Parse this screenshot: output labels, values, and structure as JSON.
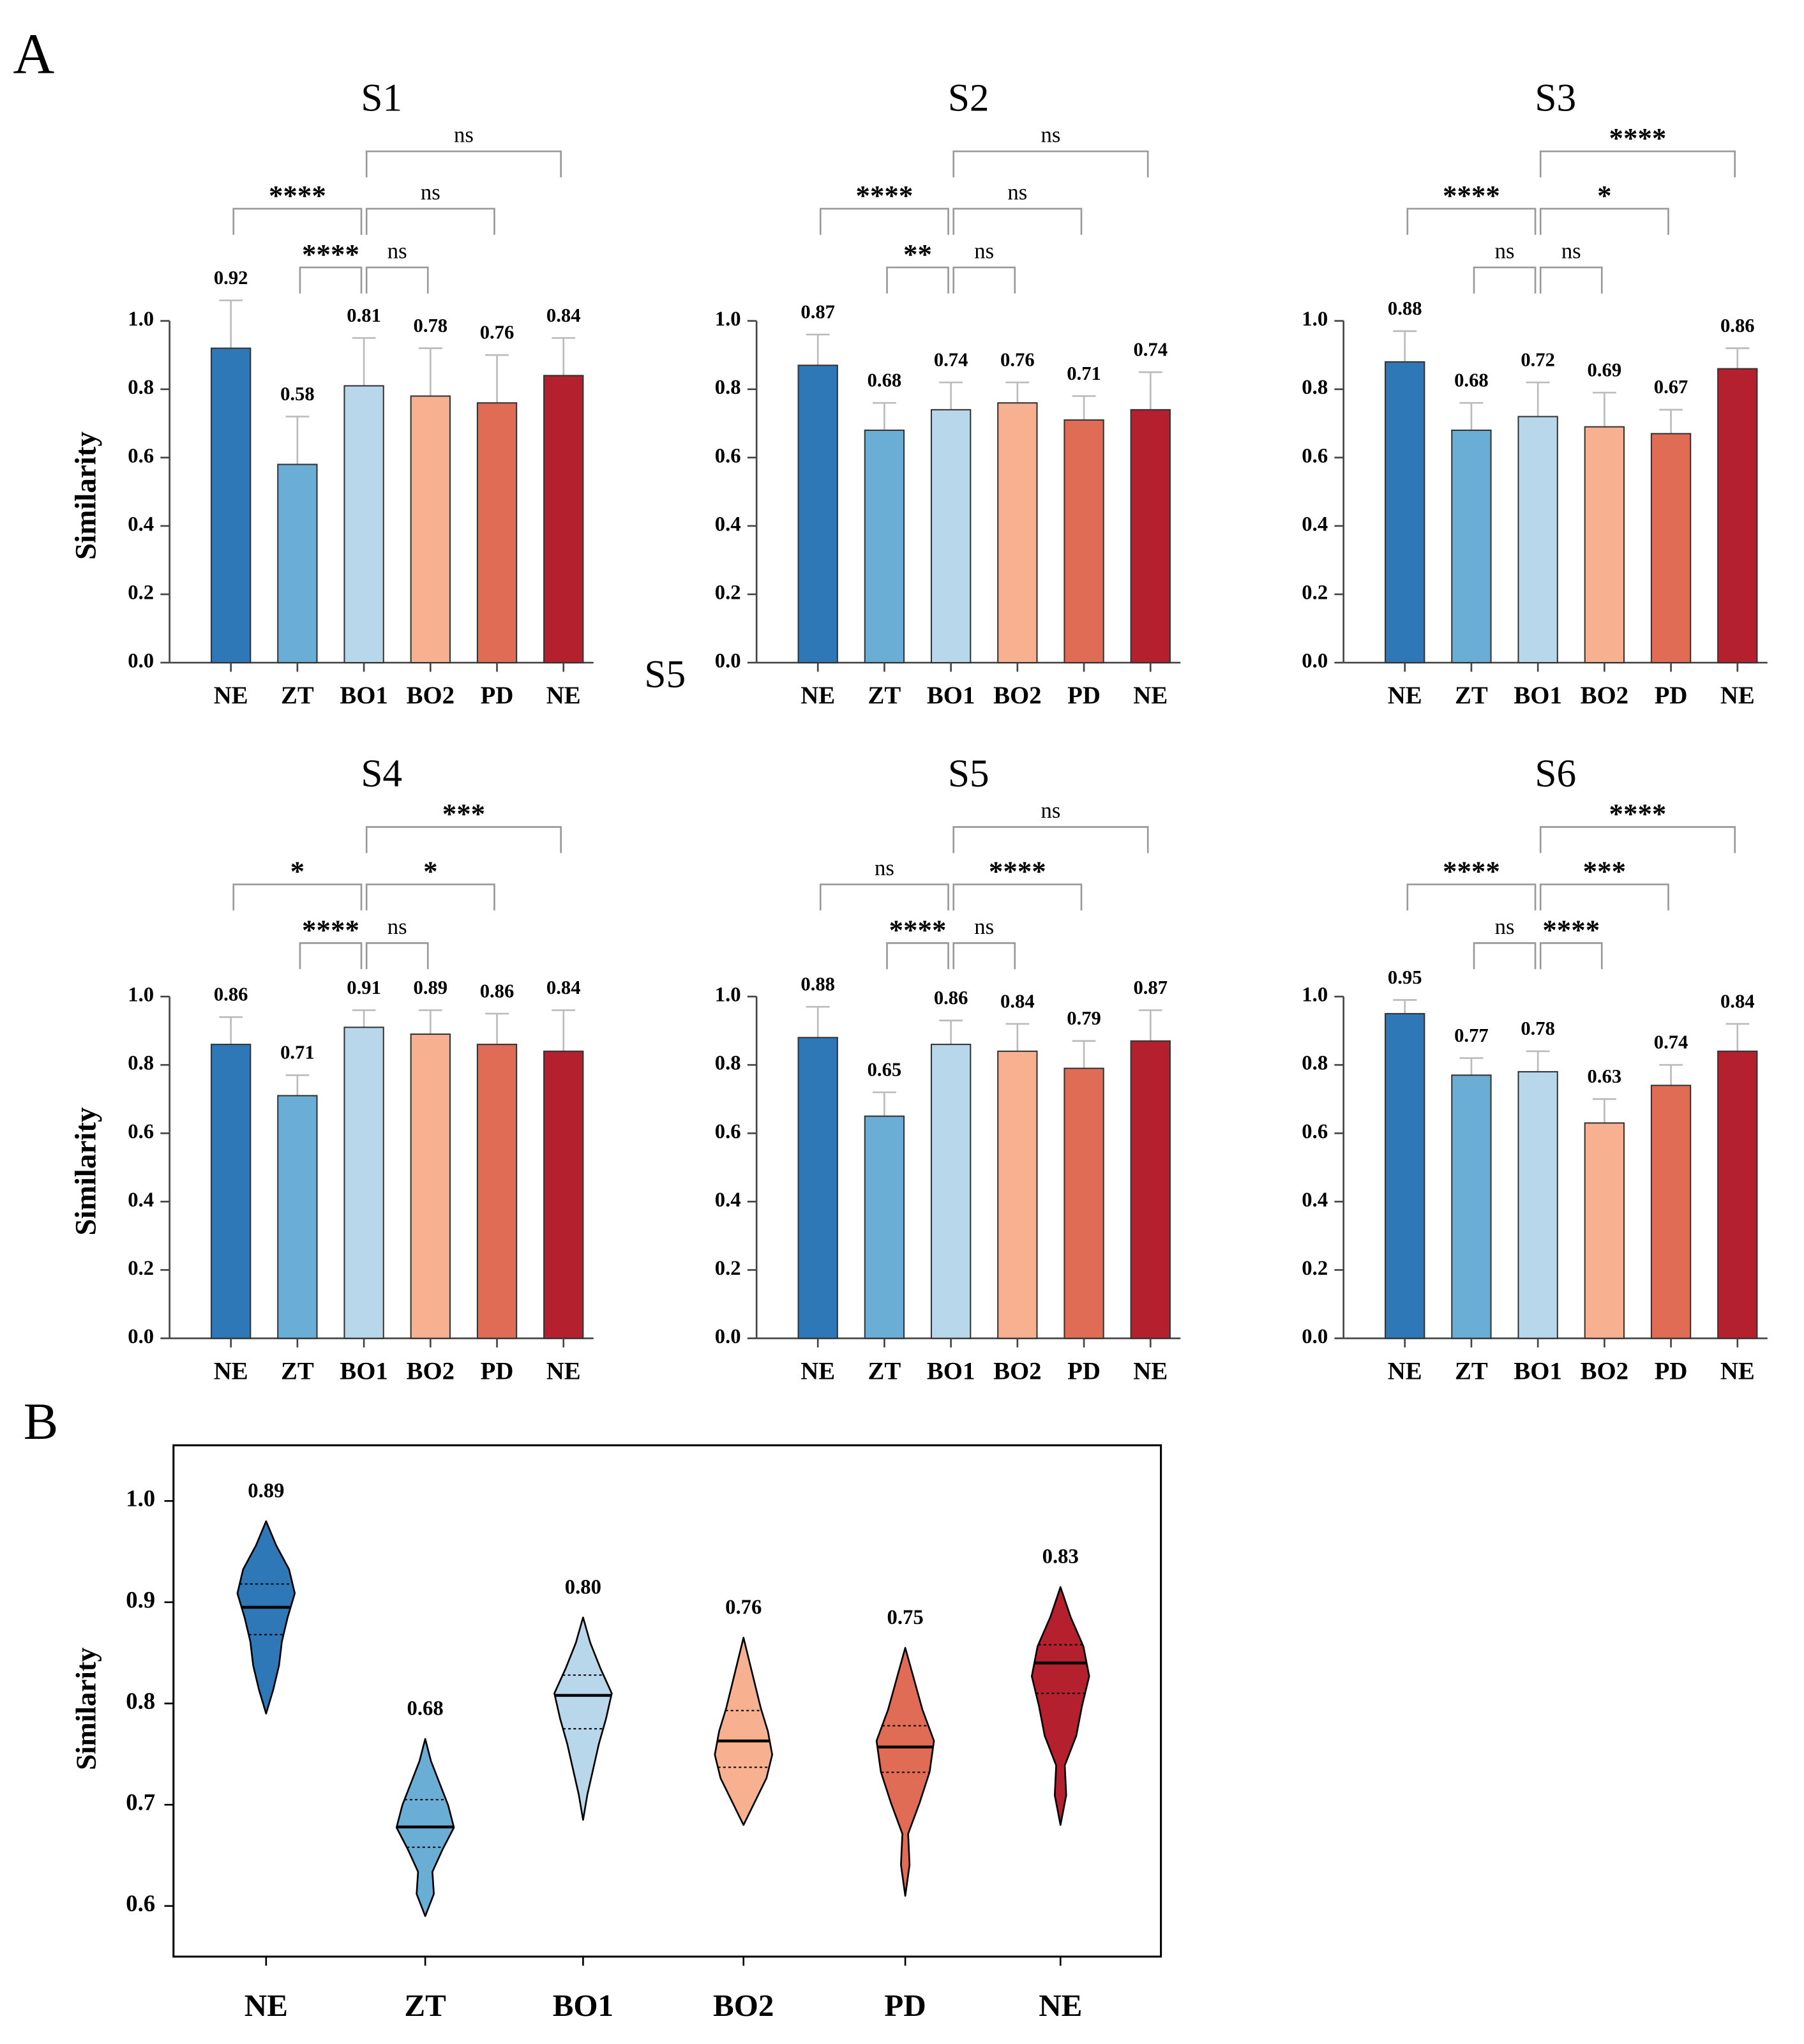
{
  "labels": {
    "a": "A",
    "b": "B",
    "stray": "S5"
  },
  "chart_data": [
    {
      "type": "bar",
      "title": "S1",
      "y_label": "Similarity",
      "categories": [
        "NE",
        "ZT",
        "BO1",
        "BO2",
        "PD",
        "NE"
      ],
      "colors": [
        "#2e78b7",
        "#6aaed6",
        "#b9d7ea",
        "#f7b090",
        "#e06c55",
        "#b5202e"
      ],
      "values": [
        0.92,
        0.58,
        0.81,
        0.78,
        0.76,
        0.84
      ],
      "errors": [
        0.14,
        0.14,
        0.14,
        0.14,
        0.14,
        0.11
      ],
      "ylim": [
        0,
        1
      ],
      "yticks": [
        {
          "value": 0,
          "label": "0.0"
        },
        0.2,
        0.4,
        0.6,
        0.8,
        {
          "value": 1,
          "label": "1.0"
        }
      ],
      "comparisons": [
        {
          "from": 0,
          "to": 2,
          "label": "****"
        },
        {
          "from": 1,
          "to": 2,
          "label": "****"
        },
        {
          "from": 2,
          "to": 3,
          "label": "ns"
        },
        {
          "from": 2,
          "to": 4,
          "label": "ns"
        },
        {
          "from": 2,
          "to": 5,
          "label": "ns"
        }
      ]
    },
    {
      "type": "bar",
      "title": "S2",
      "categories": [
        "NE",
        "ZT",
        "BO1",
        "BO2",
        "PD",
        "NE"
      ],
      "colors": [
        "#2e78b7",
        "#6aaed6",
        "#b9d7ea",
        "#f7b090",
        "#e06c55",
        "#b5202e"
      ],
      "values": [
        0.87,
        0.68,
        0.74,
        0.76,
        0.71,
        0.74
      ],
      "errors": [
        0.09,
        0.08,
        0.08,
        0.06,
        0.07,
        0.11
      ],
      "ylim": [
        0,
        1
      ],
      "yticks": [
        {
          "value": 0,
          "label": "0.0"
        },
        0.2,
        0.4,
        0.6,
        0.8,
        {
          "value": 1,
          "label": "1.0"
        }
      ],
      "comparisons": [
        {
          "from": 0,
          "to": 2,
          "label": "****"
        },
        {
          "from": 1,
          "to": 2,
          "label": "**"
        },
        {
          "from": 2,
          "to": 3,
          "label": "ns"
        },
        {
          "from": 2,
          "to": 4,
          "label": "ns"
        },
        {
          "from": 2,
          "to": 5,
          "label": "ns"
        }
      ]
    },
    {
      "type": "bar",
      "title": "S3",
      "categories": [
        "NE",
        "ZT",
        "BO1",
        "BO2",
        "PD",
        "NE"
      ],
      "colors": [
        "#2e78b7",
        "#6aaed6",
        "#b9d7ea",
        "#f7b090",
        "#e06c55",
        "#b5202e"
      ],
      "values": [
        0.88,
        0.68,
        0.72,
        0.69,
        0.67,
        0.86
      ],
      "errors": [
        0.09,
        0.08,
        0.1,
        0.1,
        0.07,
        0.06
      ],
      "ylim": [
        0,
        1
      ],
      "yticks": [
        {
          "value": 0,
          "label": "0.0"
        },
        0.2,
        0.4,
        0.6,
        0.8,
        {
          "value": 1,
          "label": "1.0"
        }
      ],
      "comparisons": [
        {
          "from": 0,
          "to": 2,
          "label": "****"
        },
        {
          "from": 1,
          "to": 2,
          "label": "ns"
        },
        {
          "from": 2,
          "to": 3,
          "label": "ns"
        },
        {
          "from": 2,
          "to": 4,
          "label": "*"
        },
        {
          "from": 2,
          "to": 5,
          "label": "****"
        }
      ]
    },
    {
      "type": "bar",
      "title": "S4",
      "y_label": "Similarity",
      "categories": [
        "NE",
        "ZT",
        "BO1",
        "BO2",
        "PD",
        "NE"
      ],
      "colors": [
        "#2e78b7",
        "#6aaed6",
        "#b9d7ea",
        "#f7b090",
        "#e06c55",
        "#b5202e"
      ],
      "values": [
        0.86,
        0.71,
        0.91,
        0.89,
        0.86,
        0.84
      ],
      "errors": [
        0.08,
        0.06,
        0.05,
        0.07,
        0.09,
        0.12
      ],
      "ylim": [
        0,
        1
      ],
      "yticks": [
        {
          "value": 0,
          "label": "0.0"
        },
        0.2,
        0.4,
        0.6,
        0.8,
        {
          "value": 1,
          "label": "1.0"
        }
      ],
      "comparisons": [
        {
          "from": 0,
          "to": 2,
          "label": "*"
        },
        {
          "from": 1,
          "to": 2,
          "label": "****"
        },
        {
          "from": 2,
          "to": 3,
          "label": "ns"
        },
        {
          "from": 2,
          "to": 4,
          "label": "*"
        },
        {
          "from": 2,
          "to": 5,
          "label": "***"
        }
      ]
    },
    {
      "type": "bar",
      "title": "S5",
      "categories": [
        "NE",
        "ZT",
        "BO1",
        "BO2",
        "PD",
        "NE"
      ],
      "colors": [
        "#2e78b7",
        "#6aaed6",
        "#b9d7ea",
        "#f7b090",
        "#e06c55",
        "#b5202e"
      ],
      "values": [
        0.88,
        0.65,
        0.86,
        0.84,
        0.79,
        0.87
      ],
      "errors": [
        0.09,
        0.07,
        0.07,
        0.08,
        0.08,
        0.09
      ],
      "ylim": [
        0,
        1
      ],
      "yticks": [
        {
          "value": 0,
          "label": "0.0"
        },
        0.2,
        0.4,
        0.6,
        0.8,
        {
          "value": 1,
          "label": "1.0"
        }
      ],
      "comparisons": [
        {
          "from": 0,
          "to": 2,
          "label": "ns"
        },
        {
          "from": 1,
          "to": 2,
          "label": "****"
        },
        {
          "from": 2,
          "to": 3,
          "label": "ns"
        },
        {
          "from": 2,
          "to": 4,
          "label": "****"
        },
        {
          "from": 2,
          "to": 5,
          "label": "ns"
        }
      ]
    },
    {
      "type": "bar",
      "title": "S6",
      "categories": [
        "NE",
        "ZT",
        "BO1",
        "BO2",
        "PD",
        "NE"
      ],
      "colors": [
        "#2e78b7",
        "#6aaed6",
        "#b9d7ea",
        "#f7b090",
        "#e06c55",
        "#b5202e"
      ],
      "values": [
        0.95,
        0.77,
        0.78,
        0.63,
        0.74,
        0.84
      ],
      "errors": [
        0.04,
        0.05,
        0.06,
        0.07,
        0.06,
        0.08
      ],
      "ylim": [
        0,
        1
      ],
      "yticks": [
        {
          "value": 0,
          "label": "0.0"
        },
        0.2,
        0.4,
        0.6,
        0.8,
        {
          "value": 1,
          "label": "1.0"
        }
      ],
      "comparisons": [
        {
          "from": 0,
          "to": 2,
          "label": "****"
        },
        {
          "from": 1,
          "to": 2,
          "label": "ns"
        },
        {
          "from": 2,
          "to": 3,
          "label": "****"
        },
        {
          "from": 2,
          "to": 4,
          "label": "***"
        },
        {
          "from": 2,
          "to": 5,
          "label": "****"
        }
      ]
    },
    {
      "type": "violin",
      "y_label": "Similarity",
      "categories": [
        "NE",
        "ZT",
        "BO1",
        "BO2",
        "PD",
        "NE"
      ],
      "colors": [
        "#2e78b7",
        "#6aaed6",
        "#b9d7ea",
        "#f7b090",
        "#e06c55",
        "#b5202e"
      ],
      "values": [
        0.89,
        0.68,
        0.8,
        0.76,
        0.75,
        0.83
      ],
      "value_labels": [
        "0.89",
        "0.68",
        "0.80",
        "0.76",
        "0.75",
        "0.83"
      ],
      "min": [
        0.79,
        0.59,
        0.685,
        0.68,
        0.61,
        0.68
      ],
      "max": [
        0.98,
        0.765,
        0.885,
        0.865,
        0.855,
        0.915
      ],
      "median": [
        0.895,
        0.678,
        0.808,
        0.763,
        0.757,
        0.84
      ],
      "q1": [
        0.868,
        0.658,
        0.775,
        0.737,
        0.732,
        0.81
      ],
      "q3": [
        0.918,
        0.705,
        0.828,
        0.793,
        0.778,
        0.858
      ],
      "density": [
        [
          0,
          0.25,
          0.45,
          0.55,
          0.75,
          1,
          0.8,
          0.35,
          0
        ],
        [
          0,
          0.3,
          0.25,
          0.6,
          1,
          0.8,
          0.5,
          0.2,
          0
        ],
        [
          0,
          0.15,
          0.35,
          0.55,
          0.8,
          1,
          0.6,
          0.25,
          0
        ],
        [
          0,
          0.4,
          0.8,
          1,
          0.85,
          0.6,
          0.4,
          0.2,
          0
        ],
        [
          0,
          0.15,
          0.1,
          0.5,
          0.85,
          1,
          0.6,
          0.3,
          0
        ],
        [
          0,
          0.2,
          0.15,
          0.55,
          0.75,
          1,
          0.8,
          0.35,
          0
        ]
      ],
      "ylim": [
        0.55,
        1.055
      ],
      "yticks": [
        0.6,
        0.7,
        0.8,
        0.9,
        {
          "value": 1,
          "label": "1.0"
        }
      ]
    }
  ]
}
